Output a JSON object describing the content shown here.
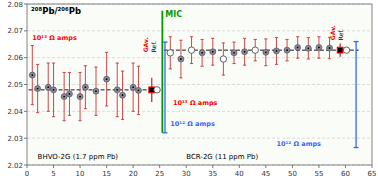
{
  "chart_data": {
    "type": "scatter",
    "title": "²⁰⁸Pb/²⁰⁶Pb",
    "xlim": [
      0,
      65
    ],
    "ylim": [
      2.02,
      2.08
    ],
    "xticks": [
      0,
      5,
      10,
      15,
      20,
      25,
      30,
      35,
      40,
      45,
      50,
      55,
      60,
      65
    ],
    "yticks": [
      2.02,
      2.03,
      2.04,
      2.05,
      2.06,
      2.07,
      2.08
    ],
    "grid": true,
    "series": [
      {
        "type": "scatter",
        "marker": "circle",
        "color": "#cc3333",
        "x": [
          1,
          2,
          4,
          5,
          7,
          8,
          10,
          11,
          13,
          15,
          17,
          18,
          20,
          21
        ],
        "values": [
          2.0535,
          2.0485,
          2.049,
          2.048,
          2.0455,
          2.0465,
          2.0455,
          2.049,
          2.0475,
          2.052,
          2.048,
          2.046,
          2.049,
          2.0478
        ],
        "errors": [
          0.011,
          0.009,
          0.009,
          0.01,
          0.009,
          0.008,
          0.009,
          0.008,
          0.009,
          0.01,
          0.01,
          0.009,
          0.009,
          0.009
        ]
      },
      {
        "type": "scatter",
        "marker": "circle",
        "color": "#cc3333",
        "x": [
          27,
          29,
          31,
          33,
          35,
          37,
          39,
          41,
          43,
          45,
          47,
          49,
          51,
          53,
          55,
          57
        ],
        "values": [
          2.0618,
          2.0595,
          2.0628,
          2.0618,
          2.0622,
          2.0595,
          2.0618,
          2.0622,
          2.0628,
          2.062,
          2.0625,
          2.0628,
          2.0638,
          2.0635,
          2.0638,
          2.0636
        ],
        "errors": [
          0.006,
          0.007,
          0.005,
          0.005,
          0.005,
          0.006,
          0.004,
          0.005,
          0.004,
          0.005,
          0.005,
          0.004,
          0.004,
          0.004,
          0.004,
          0.004
        ],
        "open": [
          true,
          false,
          true,
          false,
          false,
          true,
          false,
          false,
          true,
          false,
          false,
          false,
          false,
          false,
          false,
          false
        ]
      },
      {
        "type": "scatter",
        "marker": "square",
        "color": "#cc3333",
        "x": [
          23.5,
          59.0
        ],
        "values": [
          2.048,
          2.0628
        ],
        "errors": [
          0.0045,
          0.0025
        ]
      },
      {
        "type": "scatter",
        "marker": "circle",
        "x": [
          24.5,
          60.2
        ],
        "values": [
          2.048,
          2.0628
        ],
        "open": [
          true,
          true
        ]
      }
    ],
    "mean_lines": [
      {
        "value": 2.048,
        "x": [
          0.3,
          25.2
        ]
      },
      {
        "value": 2.0628,
        "x": [
          25.8,
          62.5
        ]
      }
    ],
    "range_bars": {
      "color": "#3366ff",
      "x": [
        26.0,
        62.0
      ],
      "low": [
        2.032,
        2.0265
      ],
      "high": [
        2.0658,
        2.066
      ]
    },
    "vertical_line": {
      "label": "MIC",
      "color": "#009900",
      "x": 25.5,
      "low": 2.032,
      "high": 2.0775
    },
    "annotations": [
      {
        "text": "10¹³ Ω amps",
        "x": 1.0,
        "y": 2.0685,
        "color": "red"
      },
      {
        "text": "10¹³ Ω amps",
        "x": 27.5,
        "y": 2.0445,
        "color": "red"
      },
      {
        "text": "10¹² Ω amps",
        "x": 27.0,
        "y": 2.0365,
        "color": "#3366ff"
      },
      {
        "text": "10¹² Ω amps",
        "x": 47.0,
        "y": 2.029,
        "color": "#3366ff"
      }
    ],
    "vertical_annotations": [
      {
        "text": "GAv.",
        "x": 22.6,
        "y": 2.062,
        "color": "red"
      },
      {
        "text": "Ref.",
        "x": 23.4,
        "y": 2.062,
        "color": "black"
      },
      {
        "text": "GAv.",
        "x": 57.8,
        "y": 2.0665,
        "color": "red"
      },
      {
        "text": "Ref.",
        "x": 58.7,
        "y": 2.0665,
        "color": "black"
      }
    ],
    "sample_labels": [
      {
        "text": "BHVO-2G (1.7 ppm Pb)",
        "x": 2.0,
        "y": 2.0215,
        "color": "black"
      },
      {
        "text": "BCR-2G (11 ppm Pb)",
        "x": 30.0,
        "y": 2.0215,
        "color": "black"
      }
    ]
  }
}
